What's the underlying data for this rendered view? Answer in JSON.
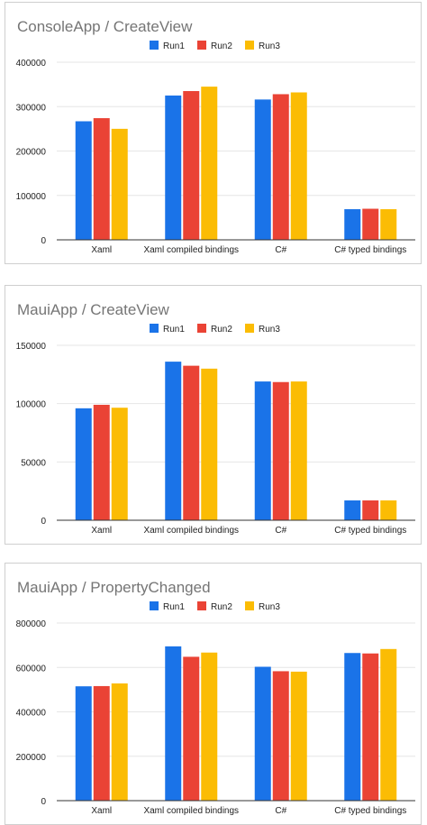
{
  "chart_data": [
    {
      "type": "bar",
      "title": "ConsoleApp / CreateView",
      "categories": [
        "Xaml",
        "Xaml compiled bindings",
        "C#",
        "C# typed bindings"
      ],
      "series": [
        {
          "name": "Run1",
          "values": [
            267000,
            325000,
            316000,
            69000
          ]
        },
        {
          "name": "Run2",
          "values": [
            274000,
            335000,
            328000,
            70000
          ]
        },
        {
          "name": "Run3",
          "values": [
            250000,
            345000,
            332000,
            69000
          ]
        }
      ],
      "ylim": [
        0,
        400000
      ],
      "yticks": [
        "0",
        "100000",
        "200000",
        "300000",
        "400000"
      ],
      "ytick_values": [
        0,
        100000,
        200000,
        300000,
        400000
      ],
      "legend_position": "top",
      "grid": true
    },
    {
      "type": "bar",
      "title": "MauiApp / CreateView",
      "categories": [
        "Xaml",
        "Xaml compiled bindings",
        "C#",
        "C# typed bindings"
      ],
      "series": [
        {
          "name": "Run1",
          "values": [
            96000,
            136000,
            119000,
            17000
          ]
        },
        {
          "name": "Run2",
          "values": [
            99000,
            132500,
            118500,
            17000
          ]
        },
        {
          "name": "Run3",
          "values": [
            96500,
            130000,
            119000,
            17000
          ]
        }
      ],
      "ylim": [
        0,
        150000
      ],
      "yticks": [
        "0",
        "50000",
        "100000",
        "150000"
      ],
      "ytick_values": [
        0,
        50000,
        100000,
        150000
      ],
      "legend_position": "top",
      "grid": true
    },
    {
      "type": "bar",
      "title": "MauiApp / PropertyChanged",
      "categories": [
        "Xaml",
        "Xaml compiled bindings",
        "C#",
        "C# typed bindings"
      ],
      "series": [
        {
          "name": "Run1",
          "values": [
            515000,
            695000,
            603000,
            665000
          ]
        },
        {
          "name": "Run2",
          "values": [
            516000,
            648000,
            583000,
            663000
          ]
        },
        {
          "name": "Run3",
          "values": [
            528000,
            667000,
            581000,
            683000
          ]
        }
      ],
      "ylim": [
        0,
        800000
      ],
      "yticks": [
        "0",
        "200000",
        "400000",
        "600000",
        "800000"
      ],
      "ytick_values": [
        0,
        200000,
        400000,
        600000,
        800000
      ],
      "legend_position": "top",
      "grid": true
    }
  ],
  "colors": {
    "series": [
      "#1a73e8",
      "#ea4335",
      "#fbbc04"
    ],
    "gridline": "#e6e6e6",
    "axis": "#333333"
  }
}
